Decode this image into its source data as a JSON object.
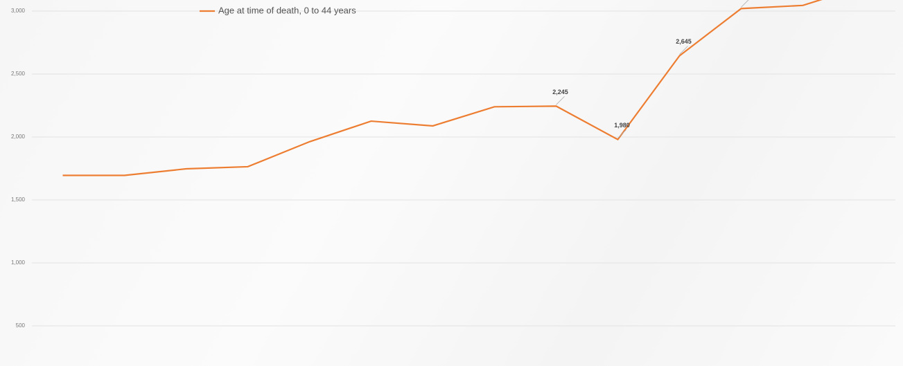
{
  "chart_data": {
    "type": "line",
    "categories": [
      null,
      null,
      null,
      null,
      null,
      null,
      null,
      null,
      null,
      null,
      null,
      null,
      null,
      null
    ],
    "series": [
      {
        "name": "Age at time of death, 0 to 44 years",
        "color": "#ed7d31",
        "values": [
          1695,
          1695,
          1747,
          1764,
          1962,
          2126,
          2088,
          2240,
          2245,
          1980,
          2645,
          3020,
          3045,
          3200
        ],
        "value_labels": [
          null,
          null,
          null,
          null,
          null,
          null,
          null,
          null,
          "2,245",
          "1,980",
          "2,645",
          "3,020",
          null,
          null
        ]
      }
    ],
    "ylim": [
      181,
      3088
    ],
    "yticks": [
      {
        "value": 500,
        "label": "500"
      },
      {
        "value": 1000,
        "label": "1,000"
      },
      {
        "value": 1500,
        "label": "1,500"
      },
      {
        "value": 2000,
        "label": "2,000"
      },
      {
        "value": 2500,
        "label": "2,500"
      },
      {
        "value": 3000,
        "label": "3,000"
      }
    ],
    "grid": true,
    "legend": "top"
  }
}
